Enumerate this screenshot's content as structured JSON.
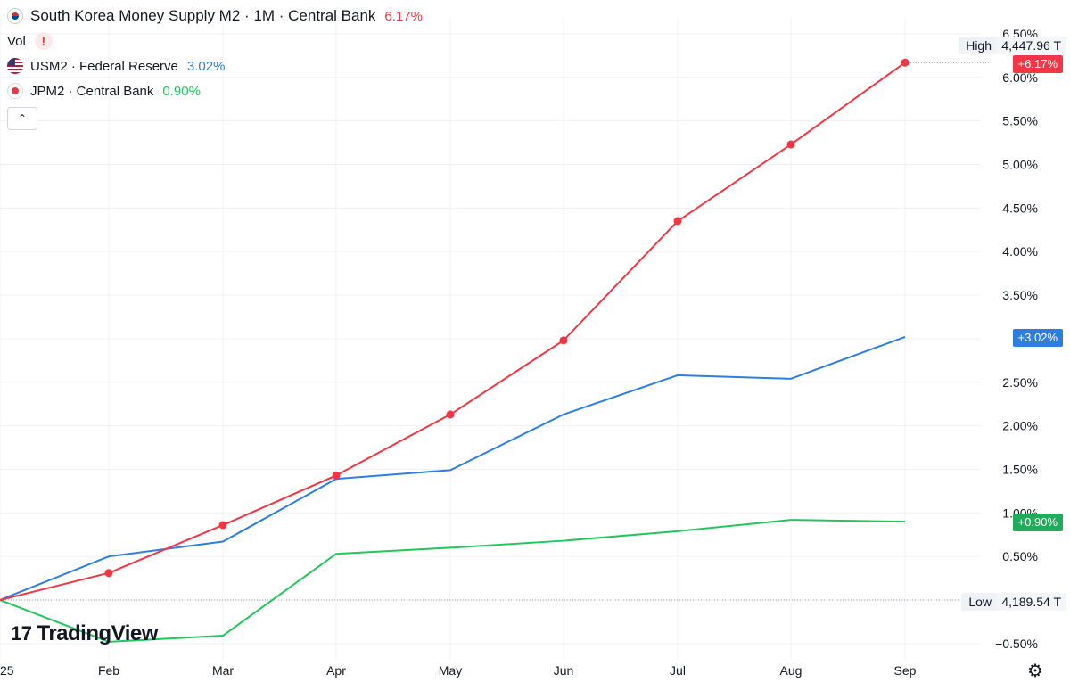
{
  "legend": {
    "main": {
      "title": "South Korea Money Supply M2 · 1M · Central Bank",
      "pct": "6.17%"
    },
    "vol": {
      "label": "Vol",
      "alert": "!"
    },
    "series": [
      {
        "label": "USM2 · Federal Reserve",
        "pct": "3.02%",
        "color": "#2962ff"
      },
      {
        "label": "JPM2 · Central Bank",
        "pct": "0.90%",
        "color": "#22ab5c"
      }
    ],
    "collapse_icon": "chevron-up-icon",
    "collapse_symbol": "⌃"
  },
  "badges": {
    "kr": "+6.17%",
    "us": "+3.02%",
    "jp": "+0.90%"
  },
  "high": {
    "label": "High",
    "value": "4,447.96 T"
  },
  "low": {
    "label": "Low",
    "value": "4,189.54 T"
  },
  "logo": {
    "text": "TradingView",
    "mark": "17"
  },
  "settings_icon": "gear-icon",
  "settings_symbol": "⚙",
  "colors": {
    "kr": "#f23645",
    "us": "#2e7de0",
    "jp": "#22c55e",
    "grid": "#eef0f3",
    "axis_text": "#131722"
  },
  "chart_data": {
    "type": "line",
    "title": "South Korea Money Supply M2 · 1M · Central Bank",
    "x": [
      "25",
      "Feb",
      "Mar",
      "Apr",
      "May",
      "Jun",
      "Jul",
      "Aug",
      "Sep"
    ],
    "ylim": [
      -0.6,
      6.55
    ],
    "yticks": [
      -0.5,
      0.0,
      0.5,
      1.0,
      1.5,
      2.0,
      2.5,
      3.0,
      3.5,
      4.0,
      4.5,
      5.0,
      5.5,
      6.0,
      6.5
    ],
    "ytick_labels": [
      "−0.50%",
      "",
      "0.50%",
      "1.00%",
      "1.50%",
      "2.00%",
      "2.50%",
      "",
      "3.50%",
      "4.00%",
      "4.50%",
      "5.00%",
      "5.50%",
      "6.00%",
      "6.50%"
    ],
    "xlabel": "",
    "ylabel": "",
    "series": [
      {
        "name": "South Korea Money Supply M2",
        "key": "kr",
        "markers": true,
        "values": [
          0.0,
          0.31,
          0.86,
          1.43,
          2.13,
          2.98,
          4.35,
          5.23,
          6.17
        ]
      },
      {
        "name": "USM2 · Federal Reserve",
        "key": "us",
        "markers": false,
        "values": [
          0.0,
          0.5,
          0.67,
          1.39,
          1.49,
          2.13,
          2.58,
          2.54,
          3.02
        ]
      },
      {
        "name": "JPM2 · Central Bank",
        "key": "jp",
        "markers": false,
        "values": [
          0.0,
          -0.48,
          -0.41,
          0.53,
          0.6,
          0.68,
          0.79,
          0.92,
          0.9
        ]
      }
    ]
  }
}
